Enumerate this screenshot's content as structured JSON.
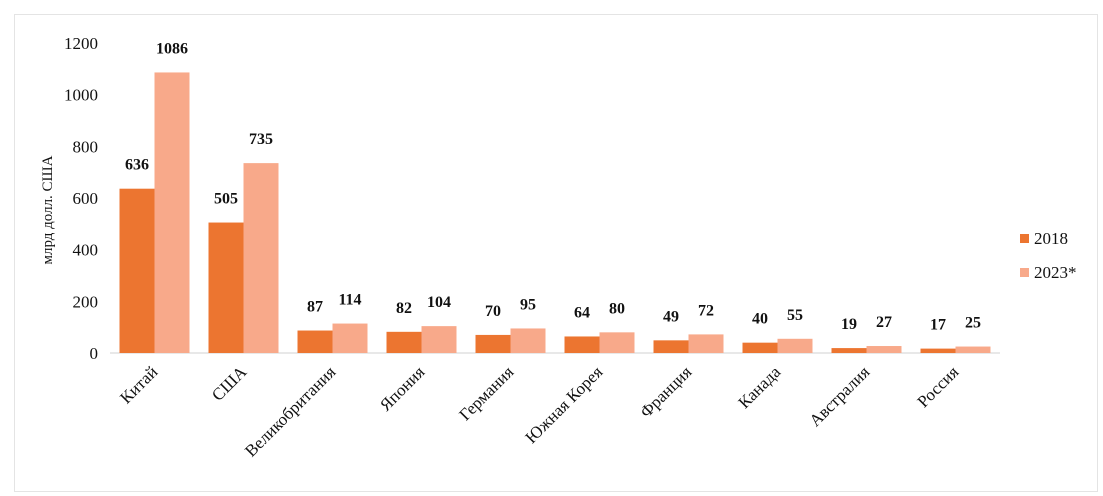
{
  "chart_data": {
    "type": "bar",
    "title": "",
    "xlabel": "",
    "ylabel": "млрд долл. США",
    "ylim": [
      0,
      1200
    ],
    "yticks": [
      0,
      200,
      400,
      600,
      800,
      1000,
      1200
    ],
    "grid": false,
    "legend_position": "right",
    "categories": [
      "Китай",
      "США",
      "Великобритания",
      "Япония",
      "Германия",
      "Южная Корея",
      "Франция",
      "Канада",
      "Австралия",
      "Россия"
    ],
    "series": [
      {
        "name": "2018",
        "color": "#ec7530",
        "values": [
          636,
          505,
          87,
          82,
          70,
          64,
          49,
          40,
          19,
          17
        ]
      },
      {
        "name": "2023*",
        "color": "#f8a98a",
        "values": [
          1086,
          735,
          114,
          104,
          95,
          80,
          72,
          55,
          27,
          25
        ]
      }
    ]
  }
}
